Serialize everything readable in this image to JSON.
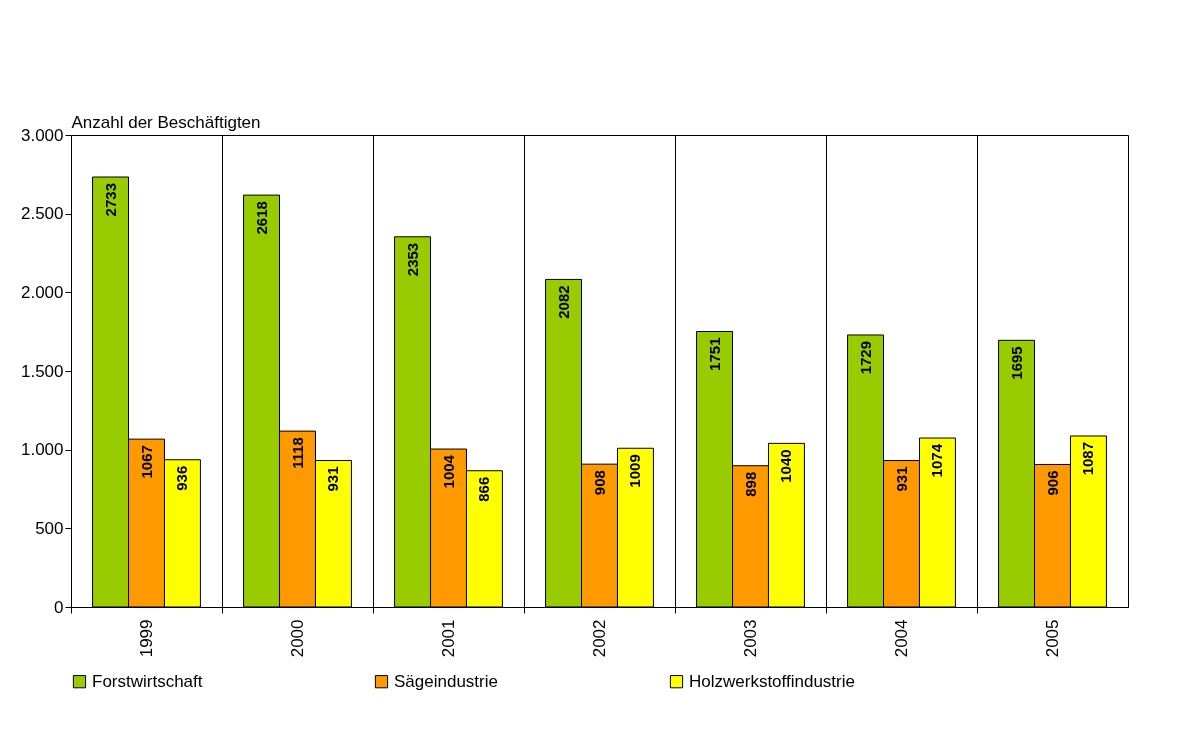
{
  "chart_data": {
    "type": "bar",
    "ylabel": "Anzahl der Beschäftigten",
    "categories": [
      "1999",
      "2000",
      "2001",
      "2002",
      "2003",
      "2004",
      "2005"
    ],
    "series": [
      {
        "name": "Forstwirtschaft",
        "color": "#99cc00",
        "values": [
          2733,
          2618,
          2353,
          2082,
          1751,
          1729,
          1695
        ]
      },
      {
        "name": "Sägeindustrie",
        "color": "#ff9900",
        "values": [
          1067,
          1118,
          1004,
          908,
          898,
          931,
          906
        ]
      },
      {
        "name": "Holzwerkstoffindustrie",
        "color": "#ffff00",
        "values": [
          936,
          931,
          866,
          1009,
          1040,
          1074,
          1087
        ]
      }
    ],
    "ylim": [
      0,
      3000
    ],
    "yticks": [
      {
        "value": 0,
        "label": "0"
      },
      {
        "value": 500,
        "label": "500"
      },
      {
        "value": 1000,
        "label": "1.000"
      },
      {
        "value": 1500,
        "label": "1.500"
      },
      {
        "value": 2000,
        "label": "2.000"
      },
      {
        "value": 2500,
        "label": "2.500"
      },
      {
        "value": 3000,
        "label": "3.000"
      }
    ],
    "grid": "x",
    "data_labels": true,
    "legend": "bottom"
  }
}
